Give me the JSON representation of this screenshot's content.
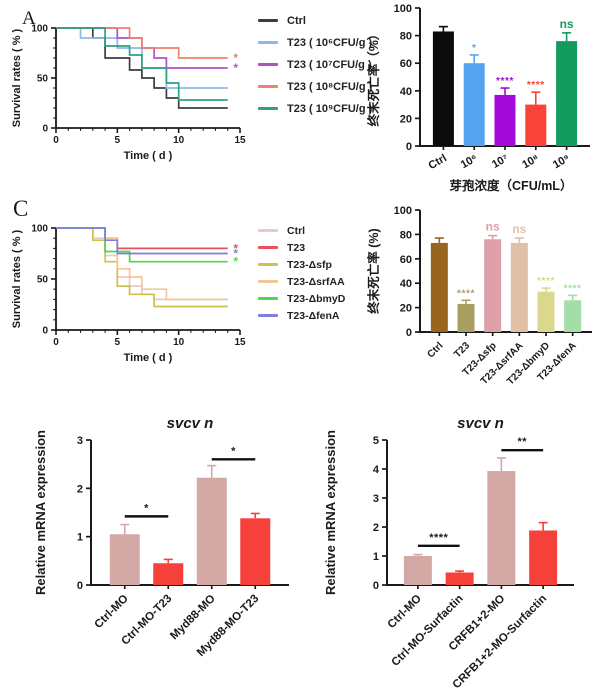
{
  "panel_a": {
    "label": "A"
  },
  "panel_c": {
    "label": "C"
  },
  "chart_data": [
    {
      "id": "survival-a",
      "type": "line",
      "subtype": "survival-step",
      "xlabel": "Time ( d )",
      "ylabel": "Survival rates ( % )",
      "xlim": [
        0,
        15
      ],
      "ylim": [
        0,
        100
      ],
      "xticks": [
        0,
        5,
        10,
        15
      ],
      "yticks": [
        0,
        50,
        100
      ],
      "x_minor_step": 1,
      "y_minor_step": 10,
      "series": [
        {
          "name": "Ctrl",
          "color": "#3d3d3f",
          "points": [
            [
              0,
              100
            ],
            [
              3,
              100
            ],
            [
              3,
              90
            ],
            [
              4,
              90
            ],
            [
              4,
              70
            ],
            [
              6,
              70
            ],
            [
              6,
              58
            ],
            [
              7,
              58
            ],
            [
              7,
              50
            ],
            [
              8,
              50
            ],
            [
              8,
              40
            ],
            [
              9,
              40
            ],
            [
              9,
              30
            ],
            [
              10,
              30
            ],
            [
              10,
              20
            ],
            [
              14,
              20
            ]
          ]
        },
        {
          "name": "T23 ( 10⁶CFU/g )",
          "color": "#8cbbe9",
          "points": [
            [
              0,
              100
            ],
            [
              2,
              100
            ],
            [
              2,
              90
            ],
            [
              5,
              90
            ],
            [
              5,
              80
            ],
            [
              7,
              80
            ],
            [
              7,
              60
            ],
            [
              9,
              60
            ],
            [
              9,
              40
            ],
            [
              14,
              40
            ]
          ]
        },
        {
          "name": "T23 ( 10⁷CFU/g )",
          "color": "#b052c7",
          "points": [
            [
              0,
              100
            ],
            [
              5,
              100
            ],
            [
              5,
              90
            ],
            [
              7,
              90
            ],
            [
              7,
              80
            ],
            [
              8,
              80
            ],
            [
              8,
              70
            ],
            [
              9,
              70
            ],
            [
              9,
              60
            ],
            [
              14,
              60
            ]
          ]
        },
        {
          "name": "T23 ( 10⁸CFU/g )",
          "color": "#f0806f",
          "points": [
            [
              0,
              100
            ],
            [
              6,
              100
            ],
            [
              6,
              90
            ],
            [
              7,
              90
            ],
            [
              7,
              80
            ],
            [
              10,
              80
            ],
            [
              10,
              70
            ],
            [
              14,
              70
            ]
          ]
        },
        {
          "name": "T23 ( 10⁹CFU/g )",
          "color": "#2da183",
          "points": [
            [
              0,
              100
            ],
            [
              4,
              100
            ],
            [
              4,
              82
            ],
            [
              6,
              82
            ],
            [
              6,
              73
            ],
            [
              7,
              73
            ],
            [
              7,
              60
            ],
            [
              9,
              60
            ],
            [
              9,
              45
            ],
            [
              10,
              45
            ],
            [
              10,
              28
            ],
            [
              14,
              28
            ]
          ]
        }
      ],
      "end_markers": [
        {
          "series": 3,
          "label": "*"
        },
        {
          "series": 2,
          "label": "*"
        }
      ]
    },
    {
      "id": "mortality-dose",
      "type": "bar",
      "title": "",
      "categories": [
        "Ctrl",
        "10⁶",
        "10⁷",
        "10⁸",
        "10⁹"
      ],
      "values": [
        83,
        60,
        37,
        30,
        76
      ],
      "errors": [
        3.5,
        6,
        5,
        9,
        6
      ],
      "colors": [
        "#0b0b0b",
        "#55a3f0",
        "#a30bd8",
        "#f94238",
        "#149c60"
      ],
      "sig_labels": [
        "",
        "*",
        "****",
        "****",
        "ns"
      ],
      "ylabel": "终末死亡率（%）",
      "xlabel": "芽孢浓度（CFU/mL）",
      "ylim": [
        0,
        100
      ],
      "yticks": [
        0,
        20,
        40,
        60,
        80,
        100
      ]
    },
    {
      "id": "survival-c",
      "type": "line",
      "subtype": "survival-step",
      "xlabel": "Time ( d )",
      "ylabel": "Survival rates ( % )",
      "xlim": [
        0,
        15
      ],
      "ylim": [
        0,
        100
      ],
      "xticks": [
        0,
        5,
        10,
        15
      ],
      "yticks": [
        0,
        50,
        100
      ],
      "x_minor_step": 1,
      "y_minor_step": 10,
      "series": [
        {
          "name": "Ctrl",
          "color": "#e7cbc8",
          "points": [
            [
              0,
              100
            ],
            [
              3,
              100
            ],
            [
              3,
              90
            ],
            [
              4,
              90
            ],
            [
              4,
              73
            ],
            [
              5,
              73
            ],
            [
              5,
              52
            ],
            [
              6,
              52
            ],
            [
              6,
              43
            ],
            [
              7,
              43
            ],
            [
              7,
              35
            ],
            [
              8,
              35
            ],
            [
              8,
              30
            ],
            [
              14,
              30
            ]
          ]
        },
        {
          "name": "T23",
          "color": "#e8505e",
          "points": [
            [
              0,
              100
            ],
            [
              4,
              100
            ],
            [
              4,
              90
            ],
            [
              5,
              90
            ],
            [
              5,
              80
            ],
            [
              14,
              80
            ]
          ]
        },
        {
          "name": "T23-Δsfp",
          "color": "#cfc24a",
          "points": [
            [
              0,
              100
            ],
            [
              3,
              100
            ],
            [
              3,
              88
            ],
            [
              4,
              88
            ],
            [
              4,
              67
            ],
            [
              5,
              67
            ],
            [
              5,
              43
            ],
            [
              6,
              43
            ],
            [
              6,
              35
            ],
            [
              8,
              35
            ],
            [
              8,
              23
            ],
            [
              14,
              23
            ]
          ]
        },
        {
          "name": "T23-ΔsrfAA",
          "color": "#f3c795",
          "points": [
            [
              0,
              100
            ],
            [
              4,
              100
            ],
            [
              4,
              90
            ],
            [
              5,
              90
            ],
            [
              5,
              60
            ],
            [
              6,
              60
            ],
            [
              6,
              52
            ],
            [
              7,
              52
            ],
            [
              7,
              40
            ],
            [
              9,
              40
            ],
            [
              9,
              30
            ],
            [
              14,
              30
            ]
          ]
        },
        {
          "name": "T23-ΔbmyD",
          "color": "#50d54d",
          "points": [
            [
              0,
              100
            ],
            [
              4,
              100
            ],
            [
              4,
              77
            ],
            [
              6,
              77
            ],
            [
              6,
              67
            ],
            [
              14,
              67
            ]
          ]
        },
        {
          "name": "T23-ΔfenA",
          "color": "#7e7fdd",
          "points": [
            [
              0,
              100
            ],
            [
              4,
              100
            ],
            [
              4,
              88
            ],
            [
              5,
              88
            ],
            [
              5,
              75
            ],
            [
              14,
              75
            ]
          ]
        }
      ],
      "end_markers": [
        {
          "series": 1,
          "label": "*"
        },
        {
          "series": 5,
          "label": "*"
        },
        {
          "series": 4,
          "label": "*"
        }
      ]
    },
    {
      "id": "mortality-mutants",
      "type": "bar",
      "title": "",
      "categories": [
        "Ctrl",
        "T23",
        "T23-Δsfp",
        "T23-ΔsrfAA",
        "T23-ΔbmyD",
        "T23-ΔfenA"
      ],
      "values": [
        73,
        23,
        76,
        73,
        33,
        26
      ],
      "errors": [
        4,
        3,
        3,
        4,
        3,
        4
      ],
      "colors": [
        "#99641d",
        "#a89f60",
        "#dda0a9",
        "#e0c0a6",
        "#dbd78d",
        "#a4dda7"
      ],
      "sig_labels": [
        "",
        "****",
        "ns",
        "ns",
        "****",
        "****"
      ],
      "ylabel": "终末死亡率 (%)",
      "xlabel": "",
      "ylim": [
        0,
        100
      ],
      "yticks": [
        0,
        20,
        40,
        60,
        80,
        100
      ]
    },
    {
      "id": "svcv-myd88",
      "type": "bar",
      "title": "svcv n",
      "categories": [
        "Ctrl-MO",
        "Ctrl-MO-T23",
        "Myd88-MO",
        "Myd88-MO-T23"
      ],
      "values": [
        1.05,
        0.45,
        2.22,
        1.38
      ],
      "errors": [
        0.2,
        0.08,
        0.25,
        0.1
      ],
      "colors": [
        "#d3a8a5",
        "#f5413a",
        "#d3a8a5",
        "#f5413a"
      ],
      "sig_labels": [
        "",
        "",
        "",
        ""
      ],
      "brackets": [
        {
          "from": 0,
          "to": 1,
          "y": 1.42,
          "label": "*"
        },
        {
          "from": 2,
          "to": 3,
          "y": 2.6,
          "label": "*"
        }
      ],
      "ylabel": "Relative mRNA expression",
      "xlabel": "",
      "ylim": [
        0,
        3
      ],
      "yticks": [
        0,
        1,
        2,
        3
      ]
    },
    {
      "id": "svcv-crfb",
      "type": "bar",
      "title": "svcv n",
      "categories": [
        "Ctrl-MO",
        "Ctrl-MO-Surfactin",
        "CRFB1+2-MO",
        "CRFB1+2-MO-Surfactin"
      ],
      "values": [
        1.0,
        0.43,
        3.93,
        1.88
      ],
      "errors": [
        0.05,
        0.05,
        0.45,
        0.27
      ],
      "colors": [
        "#d3a8a5",
        "#f5413a",
        "#d3a8a5",
        "#f5413a"
      ],
      "sig_labels": [
        "",
        "",
        "",
        ""
      ],
      "brackets": [
        {
          "from": 0,
          "to": 1,
          "y": 1.35,
          "label": "****"
        },
        {
          "from": 2,
          "to": 3,
          "y": 4.65,
          "label": "**"
        }
      ],
      "ylabel": "Relative mRNA expression",
      "xlabel": "",
      "ylim": [
        0,
        5
      ],
      "yticks": [
        0,
        1,
        2,
        3,
        4,
        5
      ]
    }
  ]
}
